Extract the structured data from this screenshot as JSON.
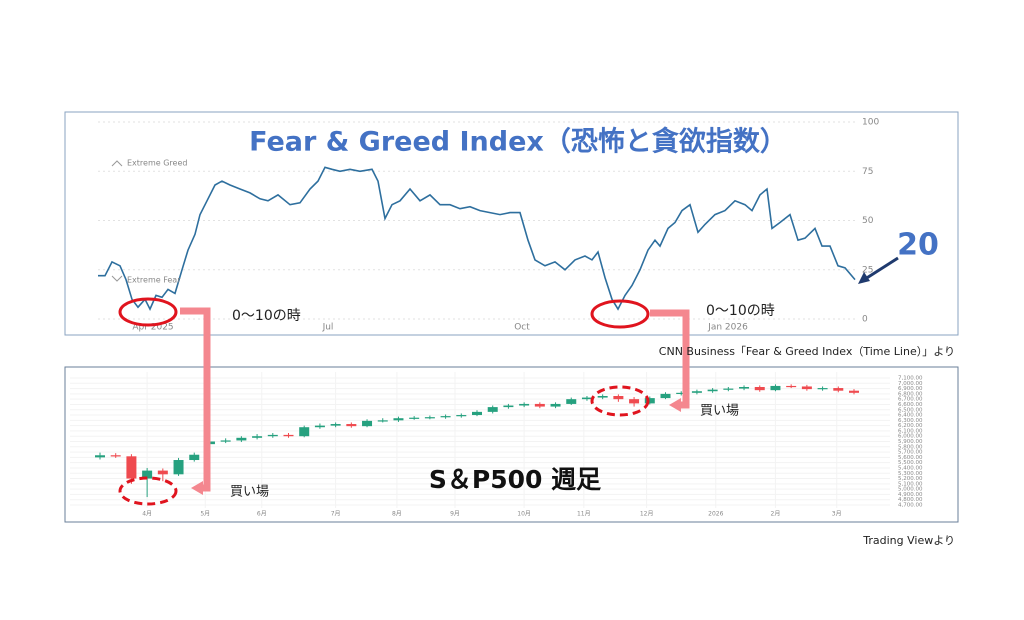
{
  "chart_data": [
    {
      "type": "line",
      "title": "Fear & Greed Index（恐怖と貪欲指数）",
      "zone_labels": [
        "Extreme Greed",
        "Extreme Fear"
      ],
      "annotations": [
        "0～10の時",
        "0～10の時",
        "20"
      ],
      "source": "CNN Business「Fear & Greed Index（Time Line）」より",
      "color": "#2e6f9e",
      "x": [
        0,
        7,
        14,
        22,
        28,
        34,
        40,
        47,
        52,
        58,
        64,
        70,
        77,
        84,
        90,
        97,
        102,
        109,
        117,
        124,
        132,
        142,
        152,
        162,
        170,
        180,
        192,
        202,
        212,
        220,
        227,
        234,
        242,
        252,
        262,
        274,
        280,
        287,
        294,
        302,
        312,
        322,
        332,
        342,
        352,
        362,
        372,
        382,
        392,
        402,
        412,
        422,
        430,
        437,
        447,
        457,
        467,
        477,
        487,
        494,
        500,
        507,
        514,
        520,
        527,
        534,
        542,
        550,
        557,
        562,
        570,
        577,
        584,
        592,
        600,
        607,
        617,
        627,
        637,
        647,
        654,
        662,
        669,
        674,
        682,
        692,
        700,
        707,
        717,
        724,
        732,
        740,
        747,
        757
      ],
      "values": [
        22,
        22,
        29,
        27,
        20,
        10,
        6,
        10,
        5,
        12,
        11,
        15,
        13,
        25,
        35,
        43,
        53,
        60,
        68,
        70,
        68,
        66,
        64,
        61,
        60,
        63,
        58,
        59,
        66,
        70,
        77,
        76,
        75,
        76,
        75,
        76,
        70,
        51,
        58,
        60,
        66,
        60,
        63,
        58,
        58,
        56,
        57,
        55,
        54,
        53,
        54,
        54,
        40,
        30,
        27,
        29,
        25,
        30,
        32,
        30,
        34,
        21,
        10,
        5,
        12,
        17,
        25,
        35,
        40,
        37,
        46,
        49,
        55,
        58,
        44,
        48,
        53,
        55,
        60,
        58,
        55,
        63,
        66,
        46,
        49,
        53,
        40,
        41,
        46,
        37,
        37,
        27,
        26,
        20
      ],
      "xlim": [
        0,
        757
      ],
      "xticks": [
        {
          "value": 55,
          "label": "Apr 2025"
        },
        {
          "value": 230,
          "label": "Jul"
        },
        {
          "value": 424,
          "label": "Oct"
        },
        {
          "value": 630,
          "label": "Jan 2026"
        }
      ],
      "ylim": [
        0,
        100
      ],
      "yticks": [
        0,
        25,
        50,
        75,
        100
      ],
      "grid": true
    },
    {
      "type": "candlestick",
      "title": "S＆P500 週足",
      "annotations": [
        "買い場",
        "買い場"
      ],
      "source": "Trading Viewより",
      "up_color": "#26a17f",
      "down_color": "#ef4a4f",
      "x": [
        0,
        1,
        2,
        3,
        4,
        5,
        6,
        7,
        8,
        9,
        10,
        11,
        12,
        13,
        14,
        15,
        16,
        17,
        18,
        19,
        20,
        21,
        22,
        23,
        24,
        25,
        26,
        27,
        28,
        29,
        30,
        31,
        32,
        33,
        34,
        35,
        36,
        37,
        38,
        39,
        40,
        41,
        42,
        43,
        44,
        45,
        46,
        47,
        48
      ],
      "open": [
        5600,
        5640,
        5620,
        5200,
        5350,
        5280,
        5550,
        5850,
        5900,
        5920,
        5970,
        6000,
        6025,
        6000,
        6170,
        6200,
        6230,
        6190,
        6290,
        6300,
        6340,
        6350,
        6360,
        6380,
        6400,
        6460,
        6550,
        6580,
        6610,
        6560,
        6610,
        6700,
        6730,
        6760,
        6700,
        6620,
        6720,
        6800,
        6820,
        6850,
        6880,
        6900,
        6930,
        6870,
        6950,
        6940,
        6890,
        6910,
        6860
      ],
      "close": [
        5640,
        5620,
        5200,
        5350,
        5280,
        5550,
        5650,
        5900,
        5920,
        5970,
        6000,
        6025,
        6000,
        6170,
        6200,
        6230,
        6190,
        6290,
        6300,
        6340,
        6350,
        6360,
        6380,
        6400,
        6460,
        6550,
        6580,
        6610,
        6560,
        6610,
        6700,
        6730,
        6760,
        6700,
        6620,
        6720,
        6800,
        6820,
        6850,
        6880,
        6900,
        6930,
        6870,
        6950,
        6940,
        6890,
        6910,
        6860,
        6820
      ],
      "high": [
        5690,
        5680,
        5660,
        5400,
        5390,
        5590,
        5690,
        5940,
        5960,
        6000,
        6040,
        6060,
        6060,
        6200,
        6240,
        6260,
        6260,
        6320,
        6340,
        6370,
        6380,
        6390,
        6410,
        6430,
        6490,
        6580,
        6610,
        6640,
        6640,
        6640,
        6730,
        6760,
        6790,
        6790,
        6740,
        6750,
        6830,
        6850,
        6880,
        6910,
        6930,
        6960,
        6960,
        6980,
        6980,
        6970,
        6940,
        6940,
        6890
      ],
      "low": [
        5560,
        5590,
        5100,
        4850,
        5150,
        5250,
        5520,
        5820,
        5870,
        5890,
        5940,
        5970,
        5970,
        5980,
        6140,
        6170,
        6160,
        6170,
        6260,
        6270,
        6310,
        6320,
        6330,
        6350,
        6380,
        6430,
        6520,
        6550,
        6530,
        6530,
        6590,
        6670,
        6700,
        6650,
        6560,
        6600,
        6700,
        6770,
        6790,
        6820,
        6850,
        6870,
        6840,
        6850,
        6910,
        6860,
        6860,
        6830,
        6790
      ],
      "xlim": [
        0,
        48
      ],
      "xticks": [
        {
          "value": 3,
          "label": "4月"
        },
        {
          "value": 6.7,
          "label": "5月"
        },
        {
          "value": 10.3,
          "label": "6月"
        },
        {
          "value": 15,
          "label": "7月"
        },
        {
          "value": 18.9,
          "label": "8月"
        },
        {
          "value": 22.6,
          "label": "9月"
        },
        {
          "value": 27,
          "label": "10月"
        },
        {
          "value": 30.8,
          "label": "11月"
        },
        {
          "value": 34.8,
          "label": "12月"
        },
        {
          "value": 39.2,
          "label": "2026"
        },
        {
          "value": 43,
          "label": "2月"
        },
        {
          "value": 46.9,
          "label": "3月"
        }
      ],
      "ylim": [
        4700,
        7100
      ],
      "yticks": [
        {
          "value": 4700,
          "label": "4,700.00"
        },
        {
          "value": 4800,
          "label": "4,800.00"
        },
        {
          "value": 4900,
          "label": "4,900.00"
        },
        {
          "value": 5000,
          "label": "5,000.00"
        },
        {
          "value": 5100,
          "label": "5,100.00"
        },
        {
          "value": 5200,
          "label": "5,200.00"
        },
        {
          "value": 5300,
          "label": "5,300.00"
        },
        {
          "value": 5400,
          "label": "5,400.00"
        },
        {
          "value": 5500,
          "label": "5,500.00"
        },
        {
          "value": 5600,
          "label": "5,600.00"
        },
        {
          "value": 5700,
          "label": "5,700.00"
        },
        {
          "value": 5800,
          "label": "5,800.00"
        },
        {
          "value": 5900,
          "label": "5,900.00"
        },
        {
          "value": 6000,
          "label": "6,000.00"
        },
        {
          "value": 6100,
          "label": "6,100.00"
        },
        {
          "value": 6200,
          "label": "6,200.00"
        },
        {
          "value": 6300,
          "label": "6,300.00"
        },
        {
          "value": 6400,
          "label": "6,400.00"
        },
        {
          "value": 6500,
          "label": "6,500.00"
        },
        {
          "value": 6600,
          "label": "6,600.00"
        },
        {
          "value": 6700,
          "label": "6,700.00"
        },
        {
          "value": 6800,
          "label": "6,800.00"
        },
        {
          "value": 6900,
          "label": "6,900.00"
        },
        {
          "value": 7000,
          "label": "7,000.00"
        },
        {
          "value": 7100,
          "label": "7,100.00"
        }
      ],
      "grid": true
    }
  ]
}
